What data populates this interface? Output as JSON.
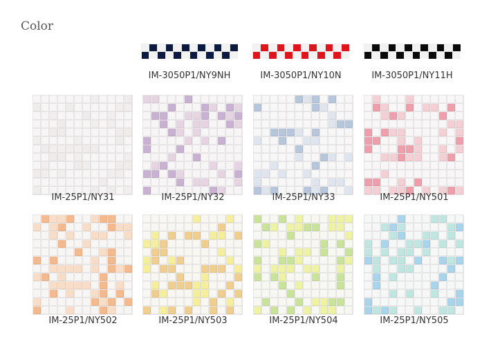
{
  "title": "Color",
  "borders": [
    {
      "code": "IM-3050P1/NY9NH",
      "color": "#0c1a40"
    },
    {
      "code": "IM-3050P1/NY10N",
      "color": "#e0141c"
    },
    {
      "code": "IM-3050P1/NY11H",
      "color": "#0a0a0a"
    }
  ],
  "mosaics": [
    {
      "code": "IM-25P1/NY31",
      "colors": [
        "#f7f5f5",
        "#f0ecec",
        "#f3eeee"
      ]
    },
    {
      "code": "IM-25P1/NY32",
      "colors": [
        "#f7f5f6",
        "#e6d4e2",
        "#c9b1d3"
      ]
    },
    {
      "code": "IM-25P1/NY33",
      "colors": [
        "#f7f7f8",
        "#dfe5ef",
        "#b6c6dd"
      ]
    },
    {
      "code": "IM-25P1/NY501",
      "colors": [
        "#f8f6f6",
        "#f4cfd4",
        "#ee9fab"
      ]
    },
    {
      "code": "IM-25P1/NY502",
      "colors": [
        "#f8f6f5",
        "#f8ddc9",
        "#f3b98f"
      ]
    },
    {
      "code": "IM-25P1/NY503",
      "colors": [
        "#f8f7f2",
        "#f5ef9c",
        "#f0cf8e"
      ]
    },
    {
      "code": "IM-25P1/NY504",
      "colors": [
        "#f8f8f3",
        "#eef3a4",
        "#c9e49a"
      ]
    },
    {
      "code": "IM-25P1/NY505",
      "colors": [
        "#f6f8f8",
        "#bfe6e0",
        "#a8d4ec"
      ]
    }
  ]
}
